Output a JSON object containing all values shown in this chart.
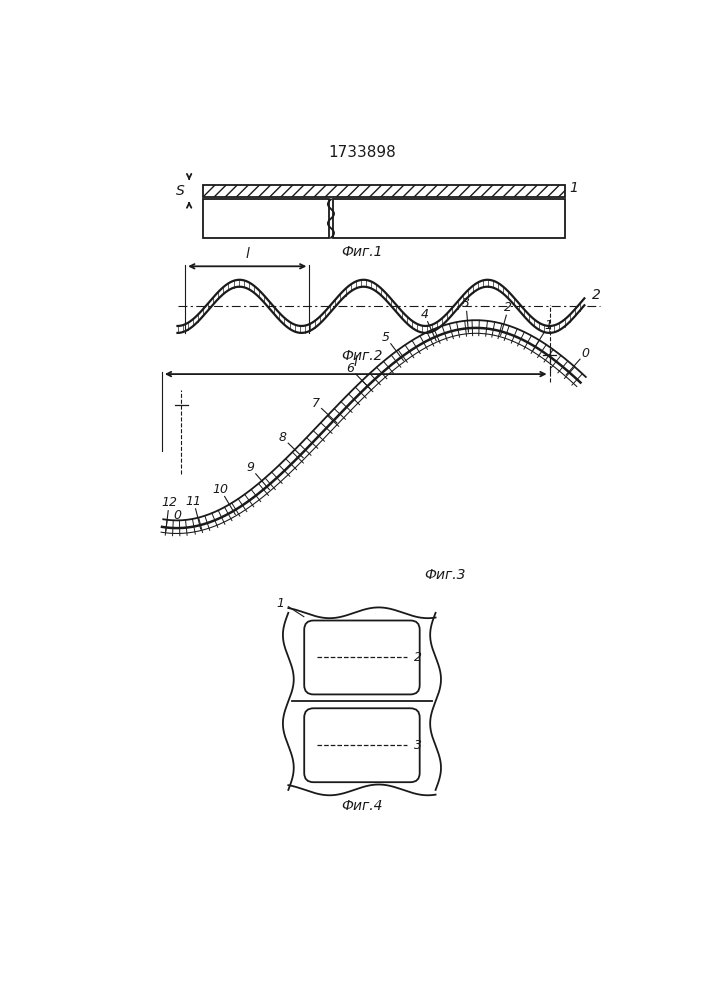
{
  "title": "1733898",
  "fig1_label": "Фиг.1",
  "fig2_label": "Фиг.2",
  "fig3_label": "Фиг.3",
  "fig4_label": "Фиг.4",
  "bg_color": "#ffffff",
  "line_color": "#1a1a1a",
  "font_size": 10,
  "label_s": "S",
  "label_1_fig1": "1",
  "label_2_fig2": "2",
  "label_l": "l",
  "label_0": "0"
}
